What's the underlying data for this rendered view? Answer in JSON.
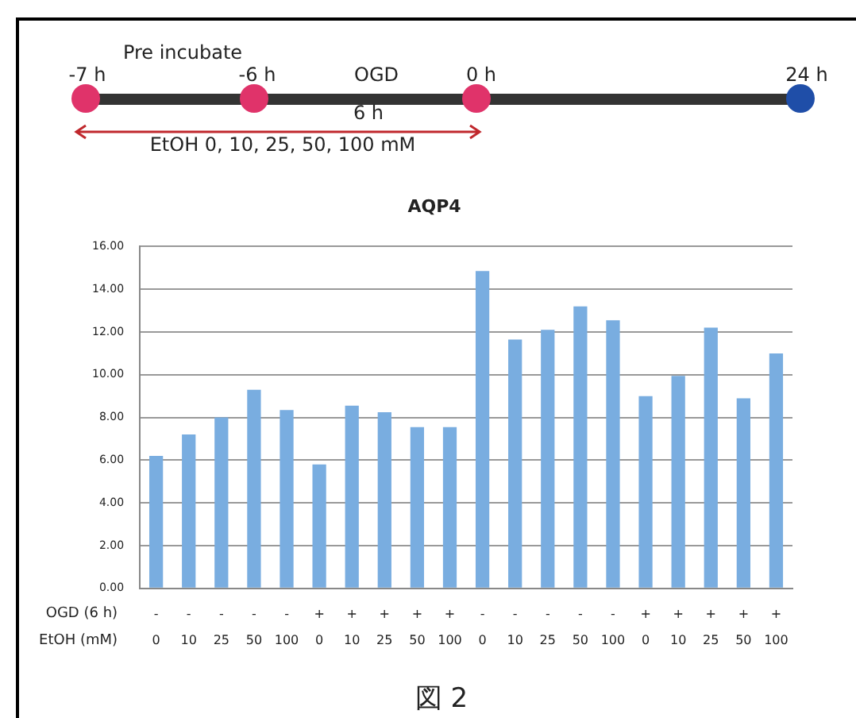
{
  "chart_data": {
    "type": "bar",
    "title": "AQP4",
    "categories": [
      "-\n0",
      "-\n10",
      "-\n25",
      "-\n50",
      "-\n100",
      "+\n0",
      "+\n10",
      "+\n25",
      "+\n50",
      "+\n100",
      "-\n0",
      "-\n10",
      "-\n25",
      "-\n50",
      "-\n100",
      "+\n0",
      "+\n10",
      "+\n25",
      "+\n50",
      "+\n100"
    ],
    "values": [
      6.2,
      7.2,
      8.0,
      9.3,
      8.35,
      5.8,
      8.55,
      8.25,
      7.55,
      7.55,
      14.85,
      11.65,
      12.1,
      13.2,
      12.55,
      9.0,
      9.95,
      12.2,
      8.9,
      11.0
    ],
    "color": "#79ade0",
    "ylim": [
      0,
      16
    ],
    "yticks": [
      {
        "value": 0,
        "label": "0.00"
      },
      {
        "value": 2,
        "label": "2.00"
      },
      {
        "value": 4,
        "label": "4.00"
      },
      {
        "value": 6,
        "label": "6.00"
      },
      {
        "value": 8,
        "label": "8.00"
      },
      {
        "value": 10,
        "label": "10.00"
      },
      {
        "value": 12,
        "label": "12.00"
      },
      {
        "value": 14,
        "label": "14.00"
      },
      {
        "value": 16,
        "label": "16.00"
      }
    ],
    "grid": "y",
    "annotations": [
      "Pre incubate",
      "-7 h",
      "-6 h",
      "OGD",
      "0 h",
      "24 h",
      "6 h",
      "EtOH 0, 10, 25, 50, 100 mM",
      "OGD (6 h)",
      "EtOH (mM)",
      "図 2"
    ]
  }
}
